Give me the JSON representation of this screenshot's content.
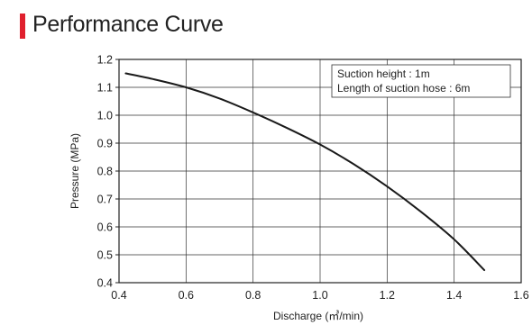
{
  "title": "Performance Curve",
  "colors": {
    "accent": "#e0202e",
    "curve": "#1a1a1a",
    "grid": "#333333"
  },
  "chart_data": {
    "type": "line",
    "xlabel": "Discharge (㎥/min)",
    "ylabel": "Pressure (MPa)",
    "xlim": [
      0.4,
      1.6
    ],
    "ylim": [
      0.4,
      1.2
    ],
    "xticks": [
      "0.4",
      "0.6",
      "0.8",
      "1.0",
      "1.2",
      "1.4",
      "1.6"
    ],
    "yticks": [
      "0.4",
      "0.5",
      "0.6",
      "0.7",
      "0.8",
      "0.9",
      "1.0",
      "1.1",
      "1.2"
    ],
    "grid": true,
    "annotation": [
      "Suction height : 1m",
      "Length of suction hose : 6m"
    ],
    "annotation_position": "top-right",
    "series": [
      {
        "x": [
          0.42,
          0.5,
          0.6,
          0.7,
          0.8,
          0.9,
          1.0,
          1.1,
          1.2,
          1.3,
          1.4,
          1.49
        ],
        "y": [
          1.15,
          1.13,
          1.1,
          1.06,
          1.01,
          0.955,
          0.895,
          0.825,
          0.745,
          0.655,
          0.555,
          0.445
        ]
      }
    ]
  }
}
